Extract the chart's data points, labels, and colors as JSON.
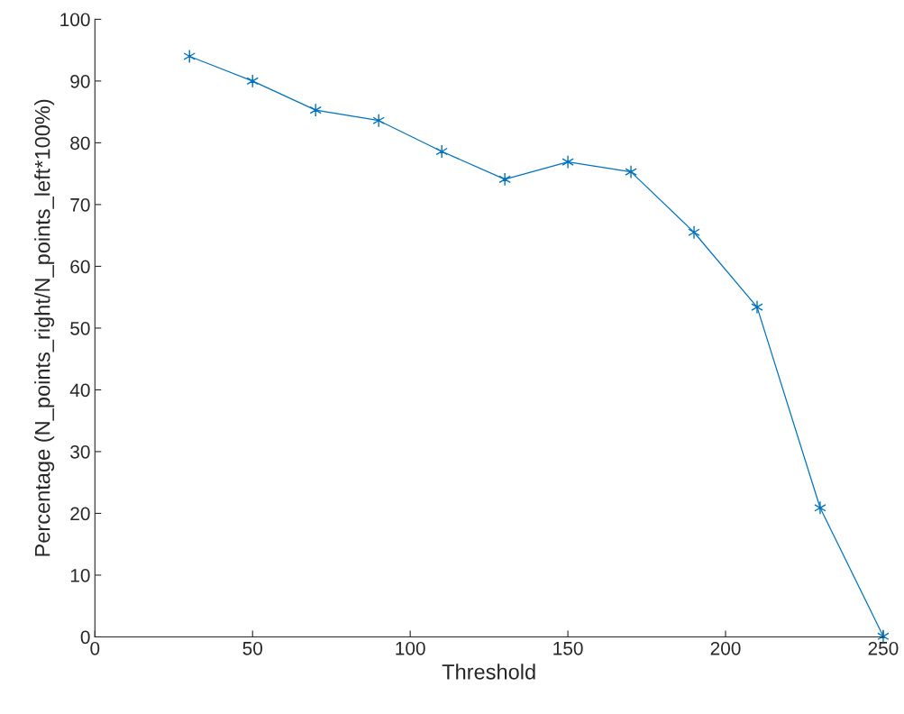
{
  "chart_data": {
    "type": "line",
    "xlabel": "Threshold",
    "ylabel": "Percentage (N_points_right/N_points_left*100%)",
    "x": [
      30,
      50,
      70,
      90,
      110,
      130,
      150,
      170,
      190,
      210,
      230,
      250
    ],
    "series": [
      {
        "color": "#0072bd",
        "values": [
          94.0,
          90.0,
          85.3,
          83.6,
          78.6,
          74.1,
          76.9,
          75.3,
          65.5,
          53.4,
          20.9,
          0.1
        ]
      }
    ],
    "xlim": [
      0,
      250
    ],
    "xticks": [
      0,
      50,
      100,
      150,
      200,
      250
    ],
    "ylim": [
      0,
      100
    ],
    "yticks": [
      0,
      10,
      20,
      30,
      40,
      50,
      60,
      70,
      80,
      90,
      100
    ],
    "marker": "cross",
    "line_style": "solid",
    "grid": false
  }
}
